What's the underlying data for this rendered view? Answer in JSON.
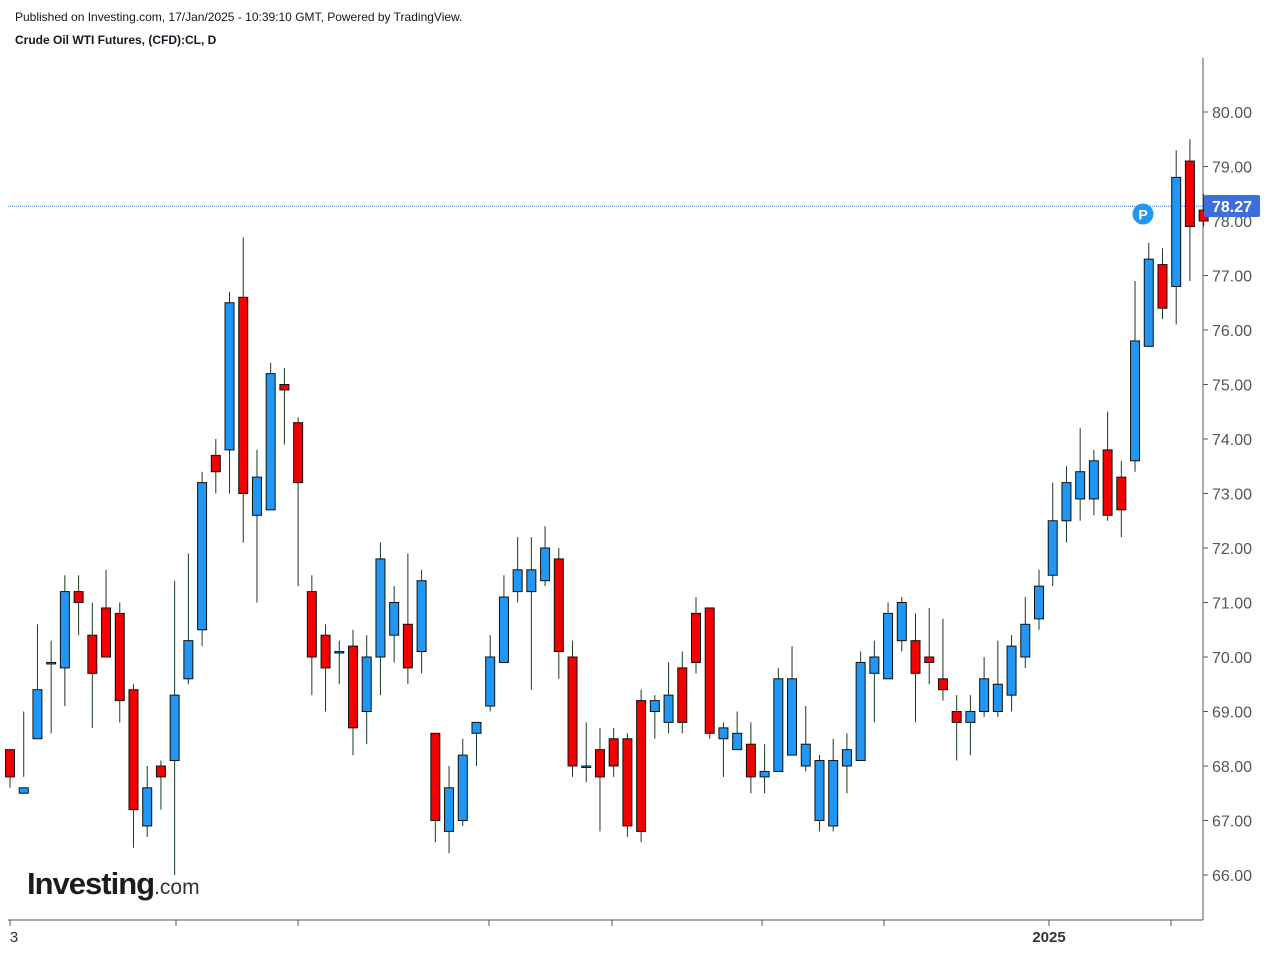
{
  "header": {
    "published": "Published on Investing.com, 17/Jan/2025 - 10:39:10 GMT, Powered by TradingView.",
    "symbol": "Crude Oil WTI Futures, (CFD):CL, D"
  },
  "logo": {
    "brand": "Investing",
    "domain": ".com"
  },
  "colors": {
    "up": "#2196f3",
    "down": "#f50000",
    "wick": "#1b3a20",
    "last_price_bg": "#3d6fd8",
    "p_badge": "#2196f3",
    "last_line": "#3d6fd8"
  },
  "badge": {
    "label": "P"
  },
  "chart_data": {
    "type": "candlestick",
    "ylim": [
      65.2,
      80.9
    ],
    "y_ticks": [
      "80.00",
      "79.00",
      "78.00",
      "77.00",
      "76.00",
      "75.00",
      "74.00",
      "73.00",
      "72.00",
      "71.00",
      "70.00",
      "69.00",
      "68.00",
      "67.00",
      "66.00"
    ],
    "x_tick_labels": [
      {
        "label": "3",
        "bold": false
      },
      {
        "label": "2025",
        "bold": true
      }
    ],
    "last_price": 78.27,
    "last_price_label": "78.27",
    "candles": [
      [
        68.3,
        67.8,
        68.3,
        67.6
      ],
      [
        67.5,
        67.6,
        69.0,
        67.8
      ],
      [
        68.5,
        69.4,
        70.6,
        68.5
      ],
      [
        69.9,
        69.9,
        70.3,
        68.6
      ],
      [
        69.8,
        71.2,
        71.5,
        69.1
      ],
      [
        71.2,
        71.0,
        71.5,
        70.4
      ],
      [
        70.4,
        69.7,
        71.0,
        68.7
      ],
      [
        70.9,
        70.0,
        71.6,
        70.5
      ],
      [
        70.8,
        69.2,
        71.0,
        68.8
      ],
      [
        69.4,
        67.2,
        69.5,
        66.5
      ],
      [
        66.9,
        67.6,
        68.0,
        66.7
      ],
      [
        68.0,
        67.8,
        68.1,
        67.2
      ],
      [
        68.1,
        69.3,
        71.4,
        66.0
      ],
      [
        69.6,
        70.3,
        71.9,
        69.5
      ],
      [
        70.5,
        73.2,
        73.4,
        70.2
      ],
      [
        73.7,
        73.4,
        74.0,
        73.0
      ],
      [
        73.8,
        76.5,
        76.7,
        73.0
      ],
      [
        76.6,
        73.0,
        77.7,
        72.1
      ],
      [
        72.6,
        73.3,
        73.8,
        71.0
      ],
      [
        72.7,
        75.2,
        75.4,
        72.7
      ],
      [
        75.0,
        74.9,
        75.3,
        73.9
      ],
      [
        74.3,
        73.2,
        74.4,
        71.3
      ],
      [
        71.2,
        70.0,
        71.5,
        69.3
      ],
      [
        70.4,
        69.8,
        70.6,
        69.0
      ],
      [
        70.1,
        70.1,
        70.3,
        69.5
      ],
      [
        70.2,
        68.7,
        70.5,
        68.2
      ],
      [
        69.0,
        70.0,
        70.4,
        68.4
      ],
      [
        70.0,
        71.8,
        72.1,
        69.3
      ],
      [
        70.4,
        71.0,
        71.3,
        69.9
      ],
      [
        70.6,
        69.8,
        71.9,
        69.5
      ],
      [
        70.1,
        71.4,
        71.6,
        69.7
      ],
      [
        68.6,
        67.0,
        68.5,
        66.6
      ],
      [
        66.8,
        67.6,
        68.0,
        66.4
      ],
      [
        67.0,
        68.2,
        68.5,
        66.9
      ],
      [
        68.6,
        68.8,
        68.7,
        68.0
      ],
      [
        69.1,
        70.0,
        70.4,
        69.0
      ],
      [
        69.9,
        71.1,
        71.5,
        69.9
      ],
      [
        71.2,
        71.6,
        72.2,
        71.0
      ],
      [
        71.2,
        71.6,
        72.2,
        69.4
      ],
      [
        71.4,
        72.0,
        72.4,
        71.3
      ],
      [
        71.8,
        70.1,
        72.0,
        69.6
      ],
      [
        70.0,
        68.0,
        70.3,
        67.8
      ],
      [
        68.0,
        68.0,
        68.8,
        67.7
      ],
      [
        68.3,
        67.8,
        68.7,
        66.8
      ],
      [
        68.5,
        68.0,
        68.7,
        67.8
      ],
      [
        68.5,
        66.9,
        68.6,
        66.7
      ],
      [
        69.2,
        66.8,
        69.4,
        66.6
      ],
      [
        69.0,
        69.2,
        69.3,
        68.5
      ],
      [
        68.8,
        69.3,
        69.9,
        68.6
      ],
      [
        69.8,
        68.8,
        70.1,
        68.6
      ],
      [
        70.8,
        69.9,
        71.1,
        69.7
      ],
      [
        70.9,
        68.6,
        70.9,
        68.5
      ],
      [
        68.5,
        68.7,
        68.8,
        67.8
      ],
      [
        68.3,
        68.6,
        69.0,
        68.4
      ],
      [
        68.4,
        67.8,
        68.8,
        67.5
      ],
      [
        67.8,
        67.9,
        68.4,
        67.5
      ],
      [
        67.9,
        69.6,
        69.8,
        67.9
      ],
      [
        68.2,
        69.6,
        70.2,
        68.2
      ],
      [
        68.0,
        68.4,
        69.1,
        67.9
      ],
      [
        67.0,
        68.1,
        68.2,
        66.8
      ],
      [
        66.9,
        68.1,
        68.5,
        66.8
      ],
      [
        68.0,
        68.3,
        68.6,
        67.5
      ],
      [
        68.1,
        69.9,
        70.1,
        68.2
      ],
      [
        69.7,
        70.0,
        70.3,
        68.8
      ],
      [
        69.6,
        70.8,
        71.0,
        69.6
      ],
      [
        70.3,
        71.0,
        71.1,
        70.1
      ],
      [
        70.3,
        69.7,
        70.8,
        68.8
      ],
      [
        70.0,
        69.9,
        70.9,
        69.5
      ],
      [
        69.6,
        69.4,
        70.7,
        69.2
      ],
      [
        69.0,
        68.8,
        69.3,
        68.1
      ],
      [
        68.8,
        69.0,
        69.3,
        68.2
      ],
      [
        69.0,
        69.6,
        70.0,
        68.9
      ],
      [
        69.0,
        69.5,
        70.3,
        68.9
      ],
      [
        69.3,
        70.2,
        70.4,
        69.0
      ],
      [
        70.0,
        70.6,
        71.1,
        69.8
      ],
      [
        70.7,
        71.3,
        71.6,
        70.5
      ],
      [
        71.5,
        72.5,
        73.2,
        71.3
      ],
      [
        72.5,
        73.2,
        73.5,
        72.1
      ],
      [
        72.9,
        73.4,
        74.2,
        72.5
      ],
      [
        72.9,
        73.6,
        73.8,
        72.6
      ],
      [
        73.8,
        72.6,
        74.5,
        72.5
      ],
      [
        73.3,
        72.7,
        73.6,
        72.2
      ],
      [
        73.6,
        75.8,
        76.9,
        73.4
      ],
      [
        75.7,
        77.3,
        77.6,
        75.7
      ],
      [
        77.2,
        76.4,
        77.5,
        76.2
      ],
      [
        76.8,
        78.8,
        79.3,
        76.1
      ],
      [
        79.1,
        77.9,
        79.5,
        76.9
      ],
      [
        78.2,
        78.0,
        78.5,
        77.9
      ]
    ]
  }
}
